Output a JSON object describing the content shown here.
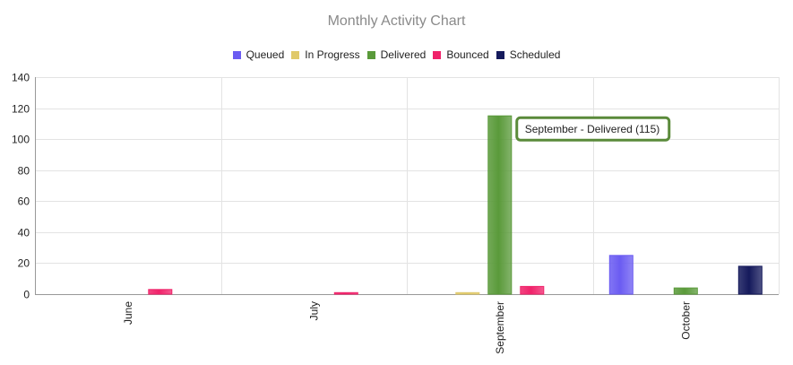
{
  "chart_data": {
    "type": "bar",
    "title": "Monthly Activity Chart",
    "categories": [
      "June",
      "July",
      "September",
      "October"
    ],
    "series": [
      {
        "name": "Queued",
        "color": "#6b5cf2",
        "values": [
          0,
          0,
          0,
          25
        ]
      },
      {
        "name": "In Progress",
        "color": "#e0c96a",
        "values": [
          0,
          0,
          1,
          0
        ]
      },
      {
        "name": "Delivered",
        "color": "#5a9a3a",
        "values": [
          0,
          0,
          115,
          4
        ]
      },
      {
        "name": "Bounced",
        "color": "#f0226a",
        "values": [
          3,
          1,
          5,
          0
        ]
      },
      {
        "name": "Scheduled",
        "color": "#151a5c",
        "values": [
          0,
          0,
          0,
          18
        ]
      }
    ],
    "ylim": [
      0,
      140
    ],
    "yticks": [
      0,
      20,
      40,
      60,
      80,
      100,
      120,
      140
    ],
    "grid": true,
    "legend_position": "top",
    "tooltip": {
      "text": "September - Delivered (115)",
      "border_color": "#5a8a3a"
    }
  }
}
